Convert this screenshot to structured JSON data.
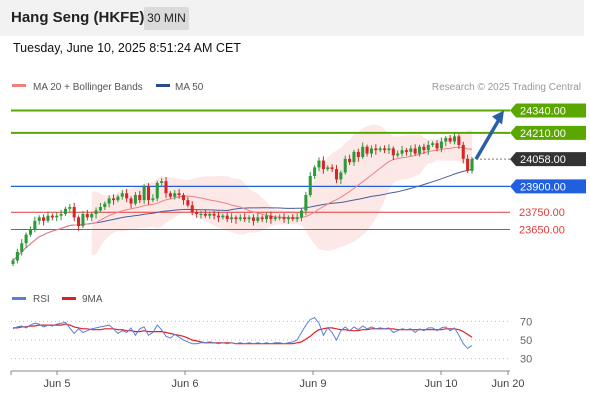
{
  "header": {
    "title": "Hang Seng (HKFE)",
    "timeframe": "30 MIN",
    "timestamp": "Tuesday, June 10, 2025 8:51:24 AM CET"
  },
  "legend": {
    "ma20": "MA 20 + Bollinger Bands",
    "ma50": "MA 50",
    "credit": "Research © 2025 Trading Central",
    "rsi": "RSI",
    "rsi_ma": "9MA"
  },
  "colors": {
    "resistance": "#5aa700",
    "support": "#1f5fe0",
    "minor_level": "#e23b3b",
    "current": "#333333",
    "ma20": "#f08080",
    "ma50": "#4a5e9a",
    "bollinger_fill": "#fde4e4",
    "candle_up": "#2c9a3a",
    "candle_down": "#d32626",
    "arrow": "#2a5fa8",
    "rsi_line": "#5b7fd6",
    "rsi_ma_line": "#e02020"
  },
  "chart_data": {
    "type": "candlestick",
    "instrument": "Hang Seng (HKFE)",
    "interval": "30 MIN",
    "x_labels": [
      "Jun 5",
      "Jun 6",
      "Jun 9",
      "Jun 10",
      "Jun 20"
    ],
    "ylim": [
      23380,
      24430
    ],
    "levels": [
      {
        "label": "24340.00",
        "value": 24340,
        "kind": "resistance"
      },
      {
        "label": "24210.00",
        "value": 24210,
        "kind": "resistance"
      },
      {
        "label": "24058.00",
        "value": 24058,
        "kind": "current"
      },
      {
        "label": "23900.00",
        "value": 23900,
        "kind": "support"
      },
      {
        "label": "23750.00",
        "value": 23750,
        "kind": "minor"
      },
      {
        "label": "23650.00",
        "value": 23650,
        "kind": "minor"
      }
    ],
    "target_arrow": {
      "from": 24058,
      "to": 24340
    },
    "close": [
      23470,
      23520,
      23570,
      23620,
      23650,
      23700,
      23720,
      23700,
      23730,
      23720,
      23730,
      23740,
      23770,
      23780,
      23720,
      23670,
      23740,
      23720,
      23740,
      23760,
      23780,
      23800,
      23830,
      23820,
      23840,
      23860,
      23830,
      23800,
      23850,
      23820,
      23900,
      23820,
      23830,
      23920,
      23930,
      23860,
      23840,
      23860,
      23850,
      23820,
      23790,
      23750,
      23740,
      23740,
      23730,
      23740,
      23730,
      23720,
      23730,
      23710,
      23720,
      23710,
      23720,
      23710,
      23720,
      23700,
      23720,
      23710,
      23730,
      23710,
      23720,
      23720,
      23710,
      23720,
      23710,
      23720,
      23760,
      23850,
      23960,
      24010,
      24050,
      24000,
      24010,
      24000,
      23940,
      23980,
      24060,
      24040,
      24100,
      24070,
      24130,
      24090,
      24120,
      24110,
      24120,
      24110,
      24120,
      24080,
      24090,
      24110,
      24100,
      24120,
      24090,
      24130,
      24110,
      24140,
      24150,
      24120,
      24160,
      24180,
      24160,
      24190,
      24140,
      24060,
      23990,
      24058
    ],
    "rsi": {
      "ticks": [
        70,
        50,
        30
      ],
      "ylim": [
        20,
        80
      ],
      "values": [
        62,
        64,
        65,
        63,
        66,
        68,
        67,
        64,
        66,
        65,
        67,
        68,
        69,
        63,
        57,
        62,
        58,
        60,
        62,
        63,
        64,
        65,
        66,
        62,
        57,
        60,
        58,
        63,
        55,
        62,
        64,
        55,
        58,
        66,
        61,
        54,
        52,
        56,
        53,
        50,
        48,
        46,
        46,
        47,
        47,
        48,
        47,
        46,
        47,
        46,
        47,
        46,
        47,
        46,
        47,
        46,
        47,
        46,
        47,
        46,
        47,
        47,
        46,
        47,
        48,
        50,
        58,
        66,
        72,
        74,
        68,
        55,
        63,
        58,
        50,
        60,
        64,
        60,
        64,
        61,
        65,
        62,
        64,
        62,
        63,
        62,
        63,
        58,
        60,
        62,
        61,
        62,
        58,
        62,
        60,
        63,
        63,
        60,
        63,
        64,
        60,
        63,
        55,
        46,
        41,
        44
      ],
      "ma9": [
        63,
        63,
        64,
        64,
        65,
        65,
        66,
        66,
        66,
        66,
        66,
        66,
        67,
        66,
        64,
        63,
        62,
        62,
        61,
        61,
        61,
        62,
        62,
        62,
        61,
        61,
        60,
        60,
        59,
        59,
        60,
        59,
        59,
        59,
        59,
        58,
        57,
        56,
        55,
        54,
        52,
        50,
        49,
        48,
        47,
        47,
        47,
        47,
        47,
        47,
        47,
        46,
        46,
        46,
        46,
        46,
        46,
        46,
        46,
        46,
        46,
        46,
        46,
        46,
        46,
        47,
        48,
        51,
        54,
        58,
        61,
        62,
        63,
        63,
        62,
        61,
        61,
        60,
        60,
        60,
        61,
        61,
        62,
        62,
        62,
        62,
        62,
        62,
        61,
        61,
        61,
        61,
        61,
        61,
        61,
        61,
        61,
        61,
        61,
        62,
        62,
        62,
        61,
        59,
        56,
        53
      ]
    }
  }
}
